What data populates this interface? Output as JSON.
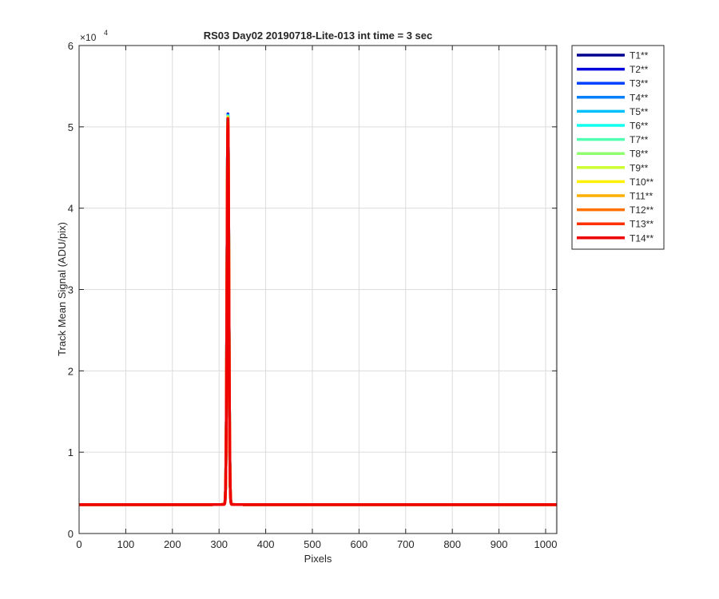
{
  "chart_data": {
    "type": "line",
    "title": "RS03 Day02 20190718-Lite-013 int time = 3 sec",
    "xlabel": "Pixels",
    "ylabel": "Track Mean Signal (ADU/pix)",
    "y_exponent_base": "10",
    "y_exponent_power": "4",
    "y_scale_factor": 10000,
    "xlim": [
      0,
      1024
    ],
    "ylim": [
      0,
      60000
    ],
    "xticks": [
      0,
      100,
      200,
      300,
      400,
      500,
      600,
      700,
      800,
      900,
      1000
    ],
    "xtick_labels": [
      "0",
      "100",
      "200",
      "300",
      "400",
      "500",
      "600",
      "700",
      "800",
      "900",
      "1000"
    ],
    "yticks": [
      0,
      10000,
      20000,
      30000,
      40000,
      50000,
      60000
    ],
    "ytick_labels": [
      "0",
      "1",
      "2",
      "3",
      "4",
      "5",
      "6"
    ],
    "grid": true,
    "legend_position": "outside-top-right",
    "peak": {
      "x": 319,
      "baseline": 3600,
      "pre_baseline": 3550,
      "post_baseline": 3550,
      "amplitudes": [
        48000,
        47950,
        47900,
        47850,
        47800,
        47750,
        47700,
        47650,
        47600,
        47550,
        47500,
        47450,
        47400,
        47350
      ],
      "width": 2.0
    },
    "series": [
      {
        "name": "T1**",
        "color": "#00008f"
      },
      {
        "name": "T2**",
        "color": "#0000df"
      },
      {
        "name": "T3**",
        "color": "#0040ff"
      },
      {
        "name": "T4**",
        "color": "#0080ff"
      },
      {
        "name": "T5**",
        "color": "#00bfff"
      },
      {
        "name": "T6**",
        "color": "#10ffef"
      },
      {
        "name": "T7**",
        "color": "#50ffaf"
      },
      {
        "name": "T8**",
        "color": "#8fff70"
      },
      {
        "name": "T9**",
        "color": "#cfff30"
      },
      {
        "name": "T10**",
        "color": "#ffef00"
      },
      {
        "name": "T11**",
        "color": "#ffaf00"
      },
      {
        "name": "T12**",
        "color": "#ff7000"
      },
      {
        "name": "T13**",
        "color": "#ff3000"
      },
      {
        "name": "T14**",
        "color": "#ef0000"
      }
    ]
  }
}
